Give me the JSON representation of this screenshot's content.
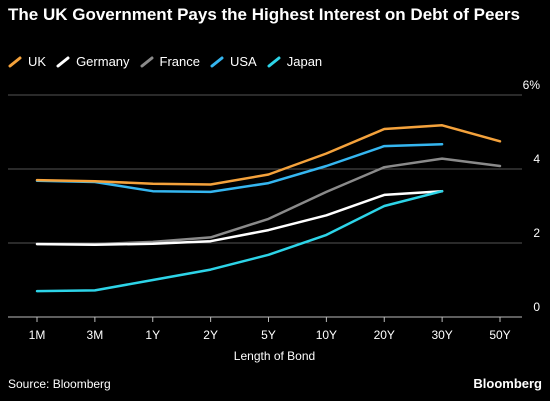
{
  "title": "The UK Government Pays the Highest Interest on Debt of Peers",
  "source": "Source: Bloomberg",
  "brand": "Bloomberg",
  "chart_data": {
    "type": "line",
    "title": "The UK Government Pays the Highest Interest on Debt of Peers",
    "xlabel": "Length of Bond",
    "ylabel": "",
    "categories": [
      "1M",
      "3M",
      "1Y",
      "2Y",
      "5Y",
      "10Y",
      "20Y",
      "30Y",
      "50Y"
    ],
    "ylim": [
      0,
      6
    ],
    "yticks": [
      0,
      2,
      4,
      6
    ],
    "ytick_labels": [
      "0",
      "2",
      "4",
      "6%"
    ],
    "grid": true,
    "legend_position": "top-left",
    "series": [
      {
        "name": "UK",
        "color": "#F4A23C",
        "values": [
          3.7,
          3.67,
          3.6,
          3.58,
          3.85,
          4.42,
          5.08,
          5.18,
          4.75
        ]
      },
      {
        "name": "Germany",
        "color": "#FFFFFF",
        "values": [
          1.97,
          1.95,
          1.98,
          2.05,
          2.35,
          2.75,
          3.3,
          3.4,
          null
        ]
      },
      {
        "name": "France",
        "color": "#8A8A8A",
        "values": [
          1.98,
          1.97,
          2.03,
          2.15,
          2.65,
          3.38,
          4.05,
          4.28,
          4.08
        ]
      },
      {
        "name": "USA",
        "color": "#35B6F0",
        "values": [
          3.68,
          3.65,
          3.4,
          3.38,
          3.62,
          4.08,
          4.62,
          4.67,
          null
        ]
      },
      {
        "name": "Japan",
        "color": "#2DD4E8",
        "values": [
          0.7,
          0.72,
          1.0,
          1.28,
          1.68,
          2.22,
          3.0,
          3.4,
          null
        ]
      }
    ]
  }
}
